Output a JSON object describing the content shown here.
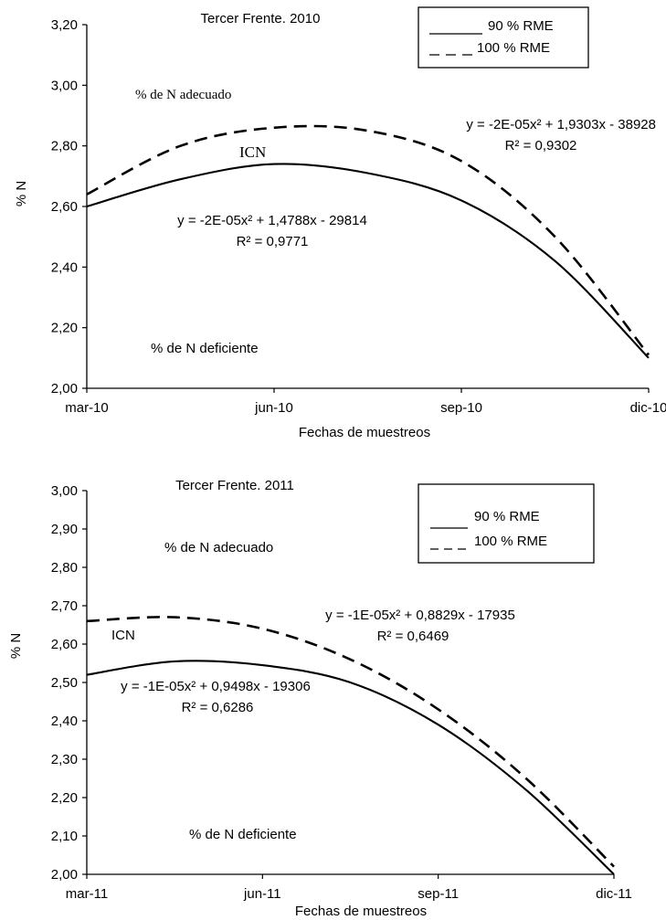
{
  "chart_data": [
    {
      "type": "line",
      "title": "Tercer Frente. 2010",
      "xlabel": "Fechas de muestreos",
      "ylabel": "% N",
      "ylim": [
        2.0,
        3.2
      ],
      "yticks": [
        "2,00",
        "2,20",
        "2,40",
        "2,60",
        "2,80",
        "3,00",
        "3,20"
      ],
      "xticks": [
        "mar-10",
        "jun-10",
        "sep-10",
        "dic-10"
      ],
      "legend_position": "top-right",
      "annotations": {
        "top": "% de N adecuado",
        "bottom": "% de N deficiente",
        "icn": "ICN"
      },
      "series": [
        {
          "name": "90 % RME",
          "style": "solid",
          "equation": "y = -2E-05x² + 1,4788x - 29814",
          "r2": "R² = 0,9771",
          "x": [
            0,
            0.5,
            1,
            1.5,
            2,
            2.5,
            3
          ],
          "values": [
            2.6,
            2.69,
            2.74,
            2.71,
            2.62,
            2.42,
            2.1
          ]
        },
        {
          "name": "100 % RME",
          "style": "dashed",
          "equation": "y = -2E-05x² + 1,9303x - 38928",
          "r2": "R² = 0,9302",
          "x": [
            0,
            0.5,
            1,
            1.5,
            2,
            2.5,
            3
          ],
          "values": [
            2.64,
            2.8,
            2.86,
            2.85,
            2.75,
            2.5,
            2.11
          ]
        }
      ]
    },
    {
      "type": "line",
      "title": "Tercer Frente. 2011",
      "xlabel": "Fechas de muestreos",
      "ylabel": "% N",
      "ylim": [
        2.0,
        3.0
      ],
      "yticks": [
        "2,00",
        "2,10",
        "2,20",
        "2,30",
        "2,40",
        "2,50",
        "2,60",
        "2,70",
        "2,80",
        "2,90",
        "3,00"
      ],
      "xticks": [
        "mar-11",
        "jun-11",
        "sep-11",
        "dic-11"
      ],
      "legend_position": "top-right",
      "annotations": {
        "top": "% de N adecuado",
        "bottom": "% de N deficiente",
        "icn": "ICN"
      },
      "series": [
        {
          "name": "90 % RME",
          "style": "solid",
          "equation": "y = -1E-05x² + 0,9498x - 19306",
          "r2": "R² = 0,6286",
          "x": [
            0,
            0.5,
            1,
            1.5,
            2,
            2.5,
            3
          ],
          "values": [
            2.52,
            2.555,
            2.545,
            2.5,
            2.39,
            2.22,
            2.0
          ]
        },
        {
          "name": "100 % RME",
          "style": "dashed",
          "equation": "y = -1E-05x² + 0,8829x - 17935",
          "r2": "R² = 0,6469",
          "x": [
            0,
            0.5,
            1,
            1.5,
            2,
            2.5,
            3
          ],
          "values": [
            2.66,
            2.67,
            2.64,
            2.56,
            2.43,
            2.25,
            2.02
          ]
        }
      ]
    }
  ]
}
